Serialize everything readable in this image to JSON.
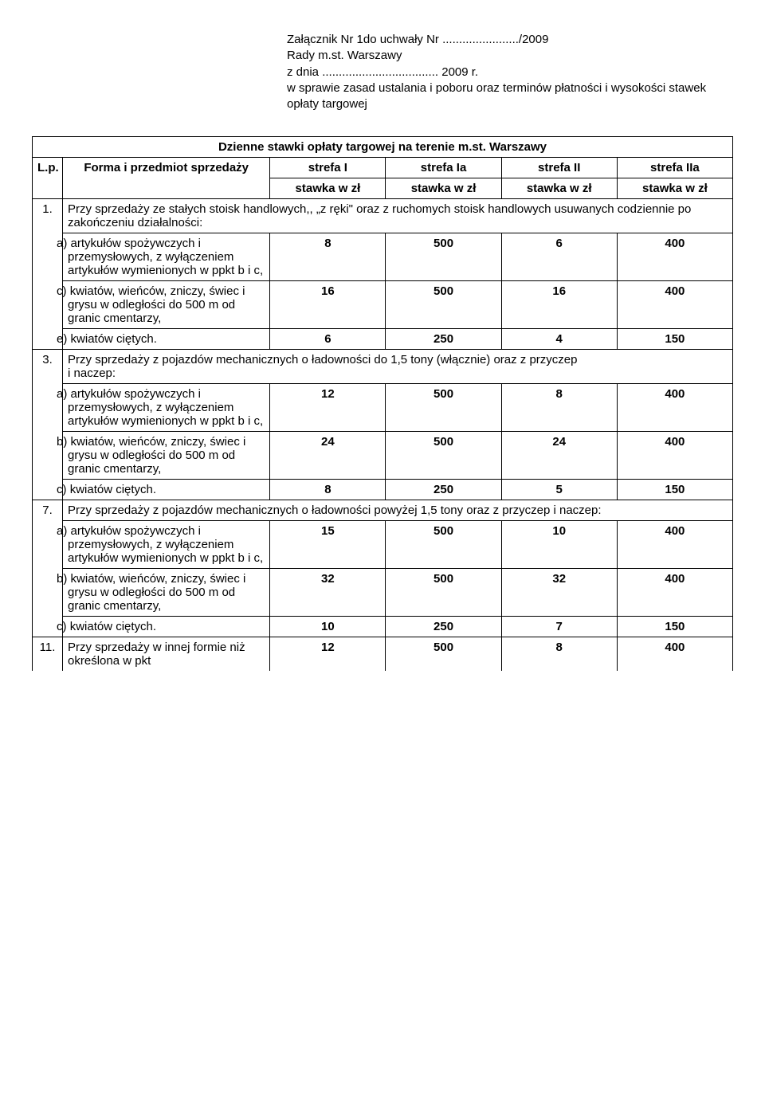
{
  "header": {
    "line1": "Załącznik Nr 1do uchwały Nr ......................./2009",
    "line2": "Rady m.st. Warszawy",
    "line3": "z dnia ................................... 2009 r.",
    "line4": "w sprawie zasad ustalania i poboru oraz terminów płatności i wysokości stawek opłaty targowej"
  },
  "title": "Dzienne stawki opłaty targowej na terenie m.st. Warszawy",
  "cols": {
    "lp": "L.p.",
    "form": "Forma i przedmiot sprzedaży",
    "s1": "strefa I",
    "s1a": "strefa Ia",
    "s2": "strefa II",
    "s2a": "strefa IIa",
    "rate": "stawka w zł",
    "rate_br": "stawka w zł"
  },
  "sections": {
    "s1": {
      "num": "1.",
      "text": "Przy sprzedaży ze stałych stoisk handlowych,, „z ręki\" oraz z ruchomych stoisk handlowych usuwanych codziennie po zakończeniu działalności:",
      "rows": {
        "a": {
          "label": "a)  artykułów spożywczych i przemysłowych, z wyłączeniem artykułów wymienionych w ppkt b i c,",
          "v": [
            "8",
            "500",
            "6",
            "400"
          ]
        },
        "c": {
          "label": "c)  kwiatów, wieńców, zniczy, świec i grysu w odległości do 500 m od granic cmentarzy,",
          "v": [
            "16",
            "500",
            "16",
            "400"
          ]
        },
        "e": {
          "label": "e)  kwiatów ciętych.",
          "v": [
            "6",
            "250",
            "4",
            "150"
          ]
        }
      }
    },
    "s3": {
      "num": "3.",
      "text": "Przy sprzedaży z pojazdów mechanicznych o ładowności do 1,5 tony (włącznie) oraz z przyczep\ni naczep:",
      "rows": {
        "a": {
          "label": "a)  artykułów spożywczych i przemysłowych, z wyłączeniem artykułów wymienionych w ppkt b i c,",
          "v": [
            "12",
            "500",
            "8",
            "400"
          ]
        },
        "b": {
          "label": "b)  kwiatów, wieńców, zniczy, świec i grysu w odległości do 500 m od granic cmentarzy,",
          "v": [
            "24",
            "500",
            "24",
            "400"
          ]
        },
        "c": {
          "label": "c)  kwiatów ciętych.",
          "v": [
            "8",
            "250",
            "5",
            "150"
          ]
        }
      }
    },
    "s7": {
      "num": "7.",
      "text": "Przy sprzedaży z pojazdów mechanicznych o ładowności powyżej 1,5 tony oraz z przyczep i naczep:",
      "rows": {
        "a": {
          "label": "a)  artykułów spożywczych i przemysłowych, z wyłączeniem artykułów wymienionych w ppkt b i c,",
          "v": [
            "15",
            "500",
            "10",
            "400"
          ]
        },
        "b": {
          "label": "b)  kwiatów, wieńców, zniczy, świec i grysu w odległości do 500 m od granic cmentarzy,",
          "v": [
            "32",
            "500",
            "32",
            "400"
          ]
        },
        "c": {
          "label": "c)  kwiatów ciętych.",
          "v": [
            "10",
            "250",
            "7",
            "150"
          ]
        }
      }
    },
    "s11": {
      "num": "11.",
      "text": "Przy sprzedaży w innej formie niż określona w pkt",
      "v": [
        "12",
        "500",
        "8",
        "400"
      ]
    }
  }
}
